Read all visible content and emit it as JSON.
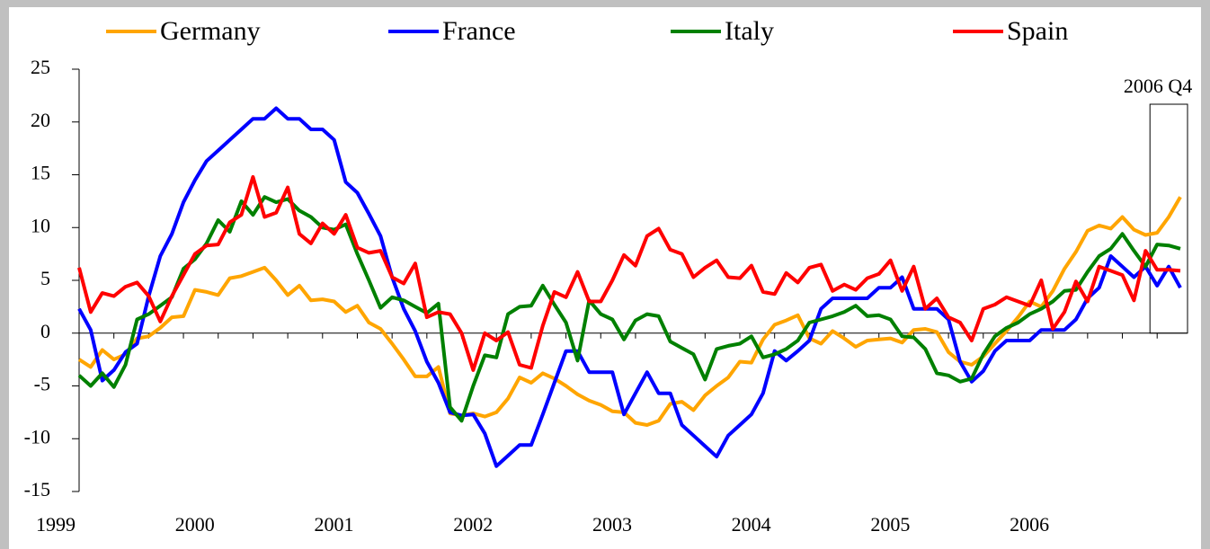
{
  "chart_data": {
    "type": "line",
    "categories": [
      "1999",
      null,
      null,
      null,
      null,
      null,
      null,
      null,
      null,
      null,
      null,
      null,
      "2000",
      null,
      null,
      null,
      null,
      null,
      null,
      null,
      null,
      null,
      null,
      null,
      "2001",
      null,
      null,
      null,
      null,
      null,
      null,
      null,
      null,
      null,
      null,
      null,
      "2002",
      null,
      null,
      null,
      null,
      null,
      null,
      null,
      null,
      null,
      null,
      null,
      "2003",
      null,
      null,
      null,
      null,
      null,
      null,
      null,
      null,
      null,
      null,
      null,
      "2004",
      null,
      null,
      null,
      null,
      null,
      null,
      null,
      null,
      null,
      null,
      null,
      "2005",
      null,
      null,
      null,
      null,
      null,
      null,
      null,
      null,
      null,
      null,
      null,
      "2006",
      null,
      null,
      null,
      null,
      null,
      null,
      null,
      null,
      null,
      null,
      null
    ],
    "series": [
      {
        "name": "Germany",
        "color": "#ffa500",
        "values": [
          -2.5,
          -3.2,
          -1.6,
          -2.5,
          -2.0,
          -0.5,
          -0.3,
          0.5,
          1.5,
          1.6,
          4.1,
          3.9,
          3.6,
          5.2,
          5.4,
          5.8,
          6.2,
          5.0,
          3.6,
          4.5,
          3.1,
          3.2,
          3.0,
          2.0,
          2.6,
          1.0,
          0.4,
          -1.0,
          -2.5,
          -4.1,
          -4.1,
          -3.2,
          -7.6,
          -7.8,
          -7.6,
          -7.9,
          -7.5,
          -6.2,
          -4.2,
          -4.7,
          -3.8,
          -4.3,
          -5.0,
          -5.8,
          -6.4,
          -6.8,
          -7.4,
          -7.5,
          -8.5,
          -8.7,
          -8.3,
          -6.7,
          -6.5,
          -7.3,
          -5.9,
          -5.0,
          -4.2,
          -2.7,
          -2.8,
          -0.6,
          0.8,
          1.2,
          1.7,
          -0.5,
          -1.0,
          0.2,
          -0.5,
          -1.3,
          -0.7,
          -0.6,
          -0.5,
          -0.9,
          0.3,
          0.4,
          0.1,
          -1.8,
          -2.7,
          -3.0,
          -2.2,
          -1.0,
          0.2,
          1.5,
          3.0,
          2.5,
          4.0,
          6.1,
          7.7,
          9.7,
          10.2,
          9.9,
          11.0,
          9.8,
          9.3,
          9.5,
          11.0,
          12.9
        ]
      },
      {
        "name": "France",
        "color": "#0000ff",
        "values": [
          2.3,
          0.3,
          -4.5,
          -3.5,
          -1.8,
          -1.0,
          3.5,
          7.3,
          9.4,
          12.4,
          14.5,
          16.3,
          17.3,
          18.3,
          19.3,
          20.3,
          20.3,
          21.3,
          20.3,
          20.3,
          19.3,
          19.3,
          18.3,
          14.3,
          13.3,
          11.3,
          9.2,
          5.3,
          2.3,
          0.2,
          -2.7,
          -4.7,
          -7.5,
          -7.8,
          -7.7,
          -9.5,
          -12.6,
          -11.6,
          -10.6,
          -10.6,
          -7.7,
          -4.7,
          -1.7,
          -1.7,
          -3.7,
          -3.7,
          -3.7,
          -7.7,
          -5.7,
          -3.7,
          -5.7,
          -5.7,
          -8.7,
          -9.7,
          -10.7,
          -11.7,
          -9.7,
          -8.7,
          -7.7,
          -5.7,
          -1.7,
          -2.6,
          -1.7,
          -0.7,
          2.3,
          3.3,
          3.3,
          3.3,
          3.3,
          4.3,
          4.3,
          5.3,
          2.3,
          2.3,
          2.3,
          1.3,
          -2.7,
          -4.6,
          -3.6,
          -1.7,
          -0.7,
          -0.7,
          -0.7,
          0.3,
          0.3,
          0.3,
          1.3,
          3.3,
          4.3,
          7.3,
          6.3,
          5.3,
          6.3,
          4.5,
          6.3,
          4.3
        ]
      },
      {
        "name": "Italy",
        "color": "#008000",
        "values": [
          -4.0,
          -5.0,
          -3.8,
          -5.1,
          -3.0,
          1.3,
          1.8,
          2.6,
          3.4,
          6.1,
          7.0,
          8.5,
          10.7,
          9.6,
          12.5,
          11.2,
          12.9,
          12.4,
          12.7,
          11.6,
          11.0,
          10.0,
          9.8,
          10.3,
          7.5,
          5.0,
          2.4,
          3.4,
          3.1,
          2.5,
          1.9,
          2.8,
          -7.0,
          -8.3,
          -5.0,
          -2.1,
          -2.3,
          1.8,
          2.5,
          2.6,
          4.5,
          2.7,
          1.0,
          -2.6,
          3.1,
          1.8,
          1.3,
          -0.6,
          1.2,
          1.8,
          1.6,
          -0.8,
          -1.4,
          -2.0,
          -4.4,
          -1.5,
          -1.2,
          -1.0,
          -0.3,
          -2.3,
          -2.0,
          -1.5,
          -0.7,
          1.0,
          1.3,
          1.6,
          2.0,
          2.6,
          1.6,
          1.7,
          1.3,
          -0.3,
          -0.4,
          -1.5,
          -3.8,
          -4.0,
          -4.6,
          -4.3,
          -2.0,
          -0.3,
          0.5,
          1.0,
          1.8,
          2.3,
          3.0,
          4.0,
          4.1,
          5.8,
          7.3,
          8.0,
          9.4,
          7.8,
          6.3,
          8.4,
          8.3,
          8.0
        ]
      },
      {
        "name": "Spain",
        "color": "#ff0000",
        "values": [
          6.2,
          2.0,
          3.8,
          3.5,
          4.4,
          4.8,
          3.5,
          1.1,
          3.5,
          5.5,
          7.5,
          8.3,
          8.4,
          10.5,
          11.2,
          14.8,
          11.0,
          11.4,
          13.8,
          9.4,
          8.5,
          10.4,
          9.4,
          11.2,
          8.1,
          7.6,
          7.8,
          5.3,
          4.7,
          6.6,
          1.5,
          2.0,
          1.8,
          0.0,
          -3.5,
          0.0,
          -0.7,
          0.1,
          -3.0,
          -3.3,
          0.7,
          3.9,
          3.4,
          5.8,
          3.0,
          3.0,
          5.0,
          7.4,
          6.4,
          9.2,
          9.9,
          7.9,
          7.5,
          5.3,
          6.2,
          6.9,
          5.3,
          5.2,
          6.4,
          3.9,
          3.7,
          5.7,
          4.8,
          6.2,
          6.5,
          4.0,
          4.6,
          4.1,
          5.2,
          5.6,
          6.9,
          4.0,
          6.3,
          2.3,
          3.3,
          1.5,
          1.0,
          -0.7,
          2.3,
          2.7,
          3.4,
          3.0,
          2.6,
          5.0,
          0.4,
          2.0,
          4.9,
          3.0,
          6.3,
          5.9,
          5.5,
          3.1,
          7.8,
          6.0,
          6.0,
          5.9
        ]
      }
    ],
    "ylim": [
      -15,
      25
    ],
    "yticks": [
      -15,
      -10,
      -5,
      0,
      5,
      10,
      15,
      20,
      25
    ],
    "annotations": [
      "2006 Q4"
    ]
  }
}
